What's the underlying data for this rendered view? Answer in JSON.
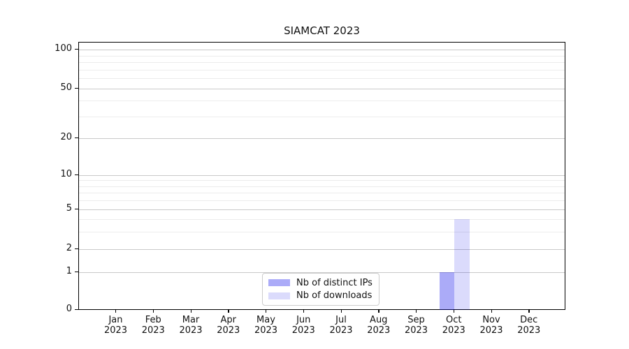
{
  "figure": {
    "title": "SIAMCAT 2023",
    "background": "#ffffff"
  },
  "chart_data": {
    "type": "bar",
    "title": "SIAMCAT 2023",
    "categories": [
      "Jan 2023",
      "Feb 2023",
      "Mar 2023",
      "Apr 2023",
      "May 2023",
      "Jun 2023",
      "Jul 2023",
      "Aug 2023",
      "Sep 2023",
      "Oct 2023",
      "Nov 2023",
      "Dec 2023"
    ],
    "series": [
      {
        "name": "Nb of distinct IPs",
        "color": "rgba(10,10,235,0.34)",
        "values": [
          0,
          0,
          0,
          0,
          0,
          0,
          0,
          0,
          0,
          1,
          0,
          0
        ]
      },
      {
        "name": "Nb of downloads",
        "color": "rgba(10,10,235,0.145)",
        "values": [
          0,
          0,
          0,
          0,
          0,
          0,
          0,
          0,
          0,
          4,
          0,
          0
        ]
      }
    ],
    "yscale": "symlog-like (linear 0-1, log above)",
    "ylim": [
      0,
      115
    ],
    "y_major_ticks": [
      0,
      1,
      2,
      5,
      10,
      20,
      50,
      100
    ],
    "y_minor_ticks": [
      3,
      4,
      6,
      7,
      8,
      9,
      30,
      40,
      60,
      70,
      80,
      90
    ],
    "xlabel": "",
    "ylabel": "",
    "grid": "horizontal major + minor",
    "legend_position": "lower center"
  },
  "x_axis": {
    "tick_months": [
      "Jan",
      "Feb",
      "Mar",
      "Apr",
      "May",
      "Jun",
      "Jul",
      "Aug",
      "Sep",
      "Oct",
      "Nov",
      "Dec"
    ],
    "tick_year": "2023"
  },
  "y_axis": {
    "tick_labels": [
      "0",
      "1",
      "2",
      "5",
      "10",
      "20",
      "50",
      "100"
    ]
  },
  "legend": {
    "items": [
      {
        "label": "Nb of distinct IPs",
        "color": "rgba(10,10,235,0.34)"
      },
      {
        "label": "Nb of downloads",
        "color": "rgba(10,10,235,0.145)"
      }
    ]
  },
  "colors": {
    "major_grid": "#c9c9c9",
    "minor_grid": "#ececec",
    "spine": "#000000",
    "bar_dark_hex": "#aaaaf5",
    "bar_light_hex": "#dcdcf9",
    "text": "#111111"
  }
}
